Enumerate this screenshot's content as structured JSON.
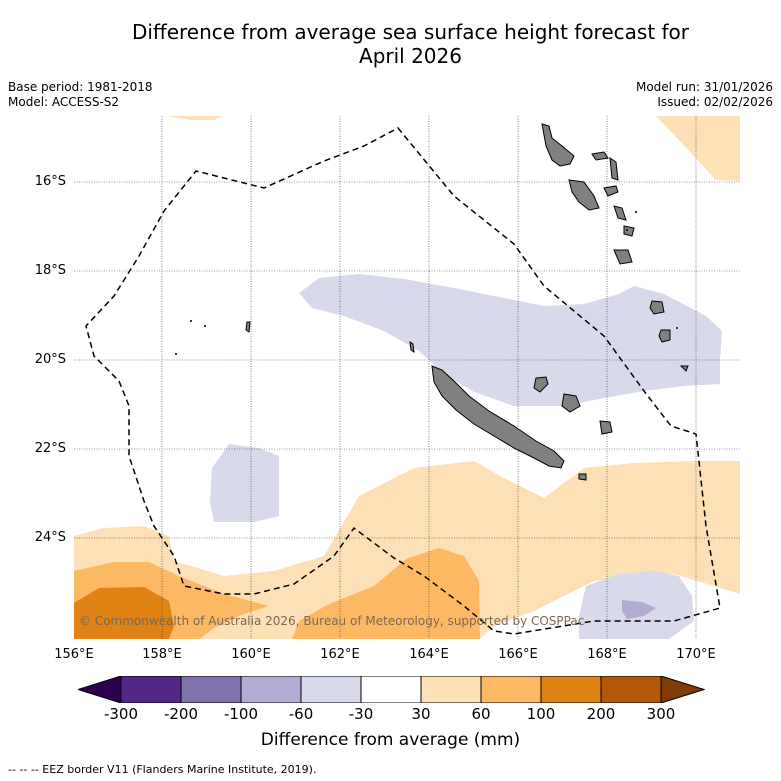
{
  "title_line1": "Difference from average sea surface height forecast for",
  "title_line2": "April 2026",
  "meta": {
    "base_period": "Base period: 1981-2018",
    "model": "Model: ACCESS-S2",
    "model_run": "Model run: 31/01/2026",
    "issued": "Issued: 02/02/2026"
  },
  "map": {
    "lon_labels": [
      "156°E",
      "158°E",
      "160°E",
      "162°E",
      "164°E",
      "166°E",
      "168°E",
      "170°E"
    ],
    "lat_labels": [
      "16°S",
      "18°S",
      "20°S",
      "22°S",
      "24°S"
    ],
    "copyright": "© Commonwealth of Australia 2026, Bureau of Meteorology, supported by COSPPac",
    "land_color": "#808080",
    "eez_border": "dashed"
  },
  "colorbar": {
    "tick_labels": [
      "-300",
      "-200",
      "-100",
      "-60",
      "-30",
      "30",
      "60",
      "100",
      "200",
      "300"
    ],
    "colors": [
      "#2d004b",
      "#542788",
      "#8073ac",
      "#b2abd2",
      "#d8daeb",
      "#ffffff",
      "#fee0b6",
      "#fdb863",
      "#e08214",
      "#b35806",
      "#7f3b08"
    ],
    "title": "Difference from average (mm)"
  },
  "legend_note": "-- -- -- EEZ border V11 (Flanders Marine Institute, 2019)."
}
